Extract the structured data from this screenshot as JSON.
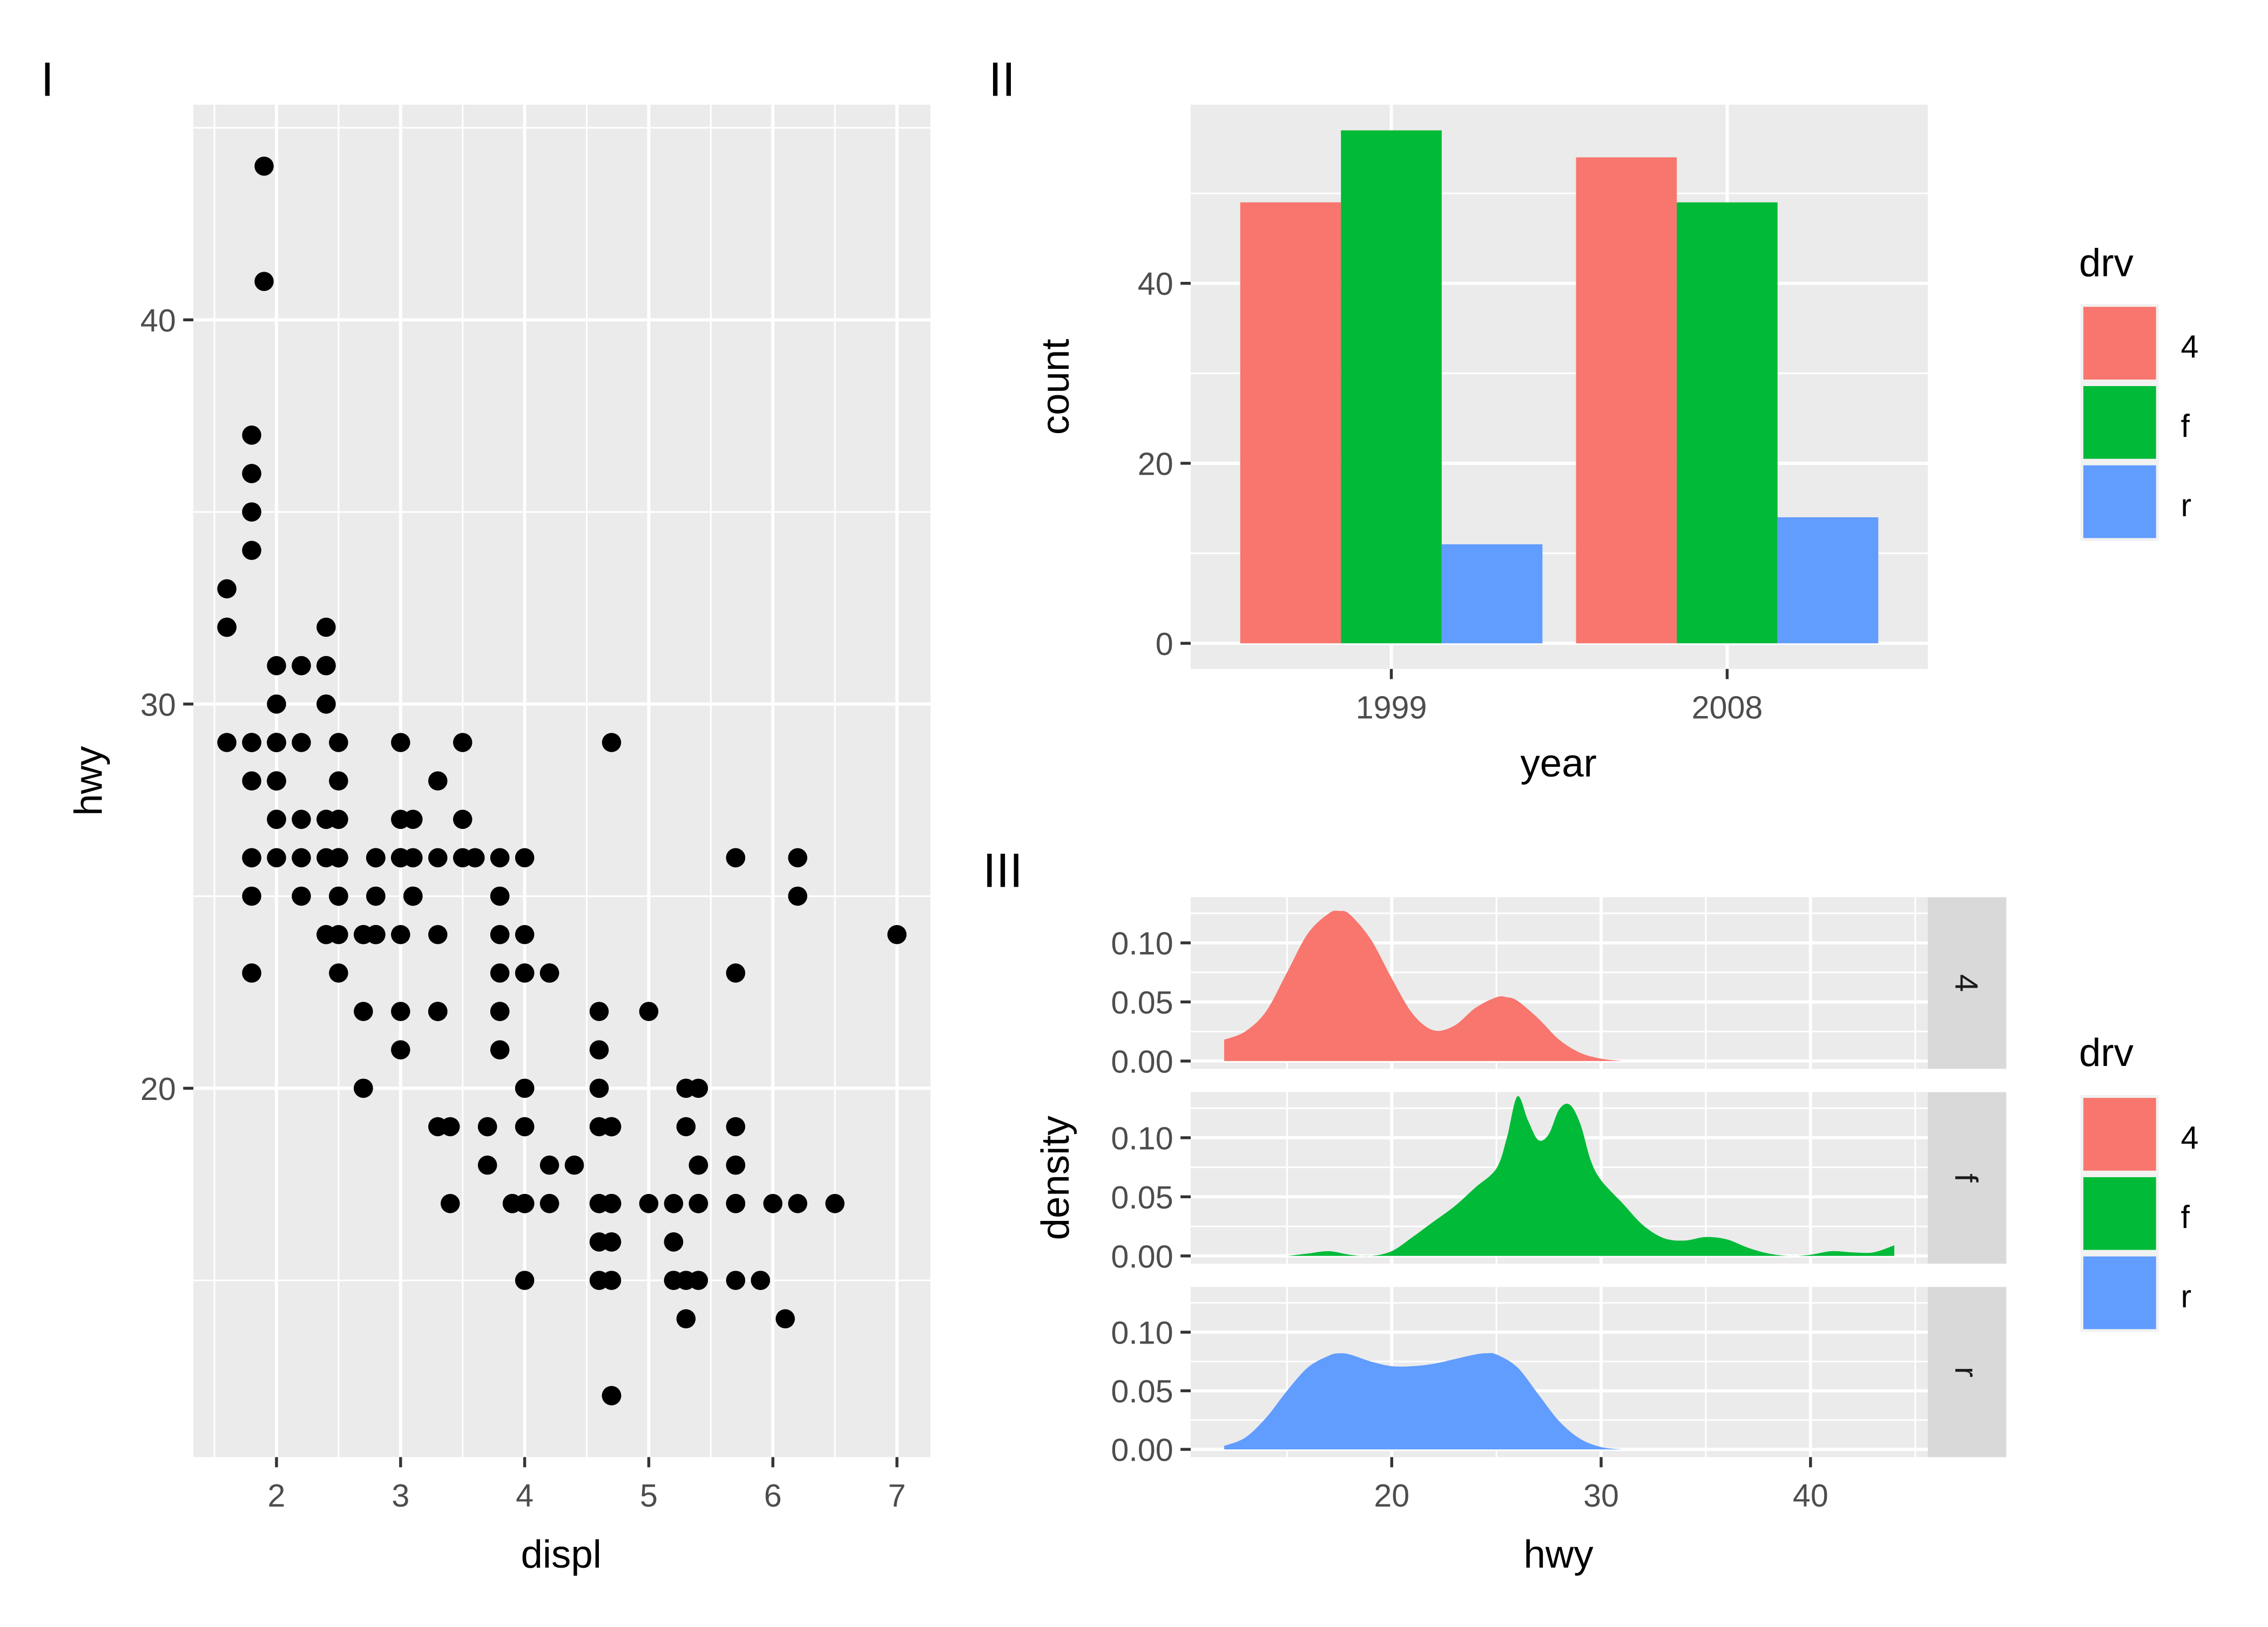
{
  "chart_data": [
    {
      "tag": "I",
      "type": "scatter",
      "title": "",
      "xlabel": "displ",
      "ylabel": "hwy",
      "xlim": [
        1.33,
        7.27
      ],
      "ylim": [
        10.4,
        45.6
      ],
      "xticks": [
        2,
        3,
        4,
        5,
        6,
        7
      ],
      "yticks": [
        20,
        30,
        40
      ],
      "grid": true,
      "point_color": "#000000",
      "points": [
        [
          1.8,
          29
        ],
        [
          1.8,
          29
        ],
        [
          2,
          31
        ],
        [
          2,
          30
        ],
        [
          2.8,
          26
        ],
        [
          2.8,
          26
        ],
        [
          3.1,
          27
        ],
        [
          1.8,
          26
        ],
        [
          1.8,
          25
        ],
        [
          2,
          28
        ],
        [
          2,
          27
        ],
        [
          2.8,
          25
        ],
        [
          2.8,
          25
        ],
        [
          3.1,
          25
        ],
        [
          3.1,
          25
        ],
        [
          2.8,
          24
        ],
        [
          3.1,
          25
        ],
        [
          4.2,
          23
        ],
        [
          5.3,
          20
        ],
        [
          5.3,
          15
        ],
        [
          5.3,
          20
        ],
        [
          5.7,
          17
        ],
        [
          6,
          17
        ],
        [
          5.7,
          26
        ],
        [
          5.7,
          23
        ],
        [
          6.2,
          26
        ],
        [
          6.2,
          25
        ],
        [
          7,
          24
        ],
        [
          5.3,
          19
        ],
        [
          5.3,
          14
        ],
        [
          5.7,
          15
        ],
        [
          6.5,
          17
        ],
        [
          2.4,
          27
        ],
        [
          2.4,
          30
        ],
        [
          3.1,
          26
        ],
        [
          3.5,
          29
        ],
        [
          3.6,
          26
        ],
        [
          2.4,
          24
        ],
        [
          3,
          24
        ],
        [
          3.3,
          22
        ],
        [
          3.3,
          19
        ],
        [
          3.3,
          22
        ],
        [
          3.3,
          22
        ],
        [
          3.3,
          24
        ],
        [
          3.8,
          24
        ],
        [
          3.8,
          22
        ],
        [
          3.8,
          21
        ],
        [
          4,
          23
        ],
        [
          3.7,
          19
        ],
        [
          3.7,
          18
        ],
        [
          3.9,
          17
        ],
        [
          3.9,
          17
        ],
        [
          4.7,
          19
        ],
        [
          4.7,
          19
        ],
        [
          4.7,
          12
        ],
        [
          5.2,
          17
        ],
        [
          5.2,
          15
        ],
        [
          3.9,
          17
        ],
        [
          4.7,
          17
        ],
        [
          4.7,
          12
        ],
        [
          4.7,
          17
        ],
        [
          5.2,
          16
        ],
        [
          5.7,
          18
        ],
        [
          5.9,
          15
        ],
        [
          4.7,
          16
        ],
        [
          4.7,
          12
        ],
        [
          4.7,
          17
        ],
        [
          4.7,
          17
        ],
        [
          4.7,
          16
        ],
        [
          4.7,
          12
        ],
        [
          5.2,
          15
        ],
        [
          5.2,
          16
        ],
        [
          5.7,
          17
        ],
        [
          5.9,
          15
        ],
        [
          4.6,
          17
        ],
        [
          5.4,
          17
        ],
        [
          5.4,
          18
        ],
        [
          4,
          17
        ],
        [
          4,
          19
        ],
        [
          4,
          17
        ],
        [
          4,
          19
        ],
        [
          4.6,
          19
        ],
        [
          5,
          17
        ],
        [
          4.2,
          17
        ],
        [
          4.2,
          17
        ],
        [
          4.6,
          16
        ],
        [
          4.6,
          17
        ],
        [
          4.6,
          17
        ],
        [
          5.4,
          15
        ],
        [
          5.4,
          17
        ],
        [
          3.8,
          26
        ],
        [
          3.8,
          25
        ],
        [
          4,
          26
        ],
        [
          4,
          24
        ],
        [
          4.6,
          21
        ],
        [
          5,
          22
        ],
        [
          4.2,
          23
        ],
        [
          4.2,
          23
        ],
        [
          4.6,
          22
        ],
        [
          4.6,
          20
        ],
        [
          4.6,
          20
        ],
        [
          5.4,
          18
        ],
        [
          5.4,
          20
        ],
        [
          1.6,
          33
        ],
        [
          1.6,
          32
        ],
        [
          1.6,
          32
        ],
        [
          1.6,
          29
        ],
        [
          1.6,
          32
        ],
        [
          1.8,
          34
        ],
        [
          1.8,
          36
        ],
        [
          1.8,
          36
        ],
        [
          2,
          29
        ],
        [
          2.4,
          26
        ],
        [
          2.4,
          27
        ],
        [
          2.4,
          30
        ],
        [
          2.4,
          31
        ],
        [
          2.5,
          26
        ],
        [
          2.5,
          26
        ],
        [
          3.3,
          28
        ],
        [
          2,
          26
        ],
        [
          2,
          29
        ],
        [
          2,
          28
        ],
        [
          2,
          27
        ],
        [
          2.7,
          24
        ],
        [
          2.7,
          24
        ],
        [
          2.7,
          24
        ],
        [
          3,
          22
        ],
        [
          3.7,
          19
        ],
        [
          4,
          20
        ],
        [
          4.7,
          17
        ],
        [
          4.7,
          12
        ],
        [
          4.7,
          19
        ],
        [
          5.7,
          18
        ],
        [
          6.1,
          14
        ],
        [
          4,
          15
        ],
        [
          4.2,
          18
        ],
        [
          4.4,
          18
        ],
        [
          4.6,
          15
        ],
        [
          5.4,
          17
        ],
        [
          5.4,
          17
        ],
        [
          2.5,
          26
        ],
        [
          2.5,
          25
        ],
        [
          2.5,
          27
        ],
        [
          2.5,
          25
        ],
        [
          2.5,
          26
        ],
        [
          2.5,
          26
        ],
        [
          2.5,
          25
        ],
        [
          2.5,
          26
        ],
        [
          2.2,
          25
        ],
        [
          2.2,
          26
        ],
        [
          2.4,
          24
        ],
        [
          3,
          21
        ],
        [
          3.3,
          22
        ],
        [
          1.8,
          23
        ],
        [
          1.8,
          23
        ],
        [
          2,
          28
        ],
        [
          2.8,
          24
        ],
        [
          3.5,
          26
        ],
        [
          2,
          29
        ],
        [
          2.5,
          24
        ],
        [
          3,
          29
        ],
        [
          3.8,
          23
        ],
        [
          3.8,
          24
        ],
        [
          4,
          23
        ],
        [
          4.7,
          19
        ],
        [
          4.7,
          15
        ],
        [
          5.7,
          17
        ],
        [
          6.2,
          17
        ],
        [
          5.7,
          19
        ],
        [
          2.5,
          27
        ],
        [
          3.8,
          25
        ],
        [
          3.8,
          26
        ],
        [
          3.8,
          22
        ],
        [
          4.7,
          17
        ],
        [
          2.2,
          29
        ],
        [
          2.2,
          27
        ],
        [
          2.4,
          31
        ],
        [
          2.4,
          31
        ],
        [
          3,
          26
        ],
        [
          3,
          26
        ],
        [
          3.5,
          27
        ],
        [
          2.2,
          31
        ],
        [
          2.2,
          31
        ],
        [
          2.4,
          31
        ],
        [
          2.4,
          32
        ],
        [
          3,
          27
        ],
        [
          3,
          26
        ],
        [
          3.3,
          26
        ],
        [
          1.8,
          26
        ],
        [
          1.8,
          28
        ],
        [
          1.8,
          35
        ],
        [
          1.8,
          37
        ],
        [
          1.8,
          35
        ],
        [
          4.7,
          29
        ],
        [
          5.7,
          26
        ],
        [
          2.7,
          20
        ],
        [
          2.7,
          20
        ],
        [
          2.7,
          22
        ],
        [
          3.4,
          17
        ],
        [
          3.4,
          19
        ],
        [
          4,
          17
        ],
        [
          4,
          20
        ],
        [
          2,
          29
        ],
        [
          2,
          29
        ],
        [
          2,
          28
        ],
        [
          2,
          29
        ],
        [
          2.8,
          26
        ],
        [
          1.9,
          44
        ],
        [
          2,
          29
        ],
        [
          2,
          29
        ],
        [
          2,
          28
        ],
        [
          2,
          29
        ],
        [
          2.5,
          29
        ],
        [
          2.5,
          23
        ],
        [
          2.8,
          24
        ],
        [
          2.8,
          24
        ],
        [
          1.9,
          41
        ],
        [
          2,
          29
        ],
        [
          2.5,
          26
        ],
        [
          2.5,
          28
        ],
        [
          1.8,
          29
        ],
        [
          1.8,
          29
        ],
        [
          2,
          28
        ],
        [
          2,
          29
        ],
        [
          2.8,
          26
        ],
        [
          2.8,
          26
        ],
        [
          3.6,
          26
        ]
      ]
    },
    {
      "tag": "II",
      "type": "bar",
      "title": "",
      "xlabel": "year",
      "ylabel": "count",
      "categories": [
        "1999",
        "2008"
      ],
      "ylim": [
        -2.85,
        59.85
      ],
      "yticks": [
        0,
        20,
        40
      ],
      "grid": true,
      "series": [
        {
          "name": "4",
          "color": "#F8766D",
          "values": [
            49,
            54
          ]
        },
        {
          "name": "f",
          "color": "#00BA38",
          "values": [
            57,
            49
          ]
        },
        {
          "name": "r",
          "color": "#619CFF",
          "values": [
            11,
            14
          ]
        }
      ],
      "legend": {
        "title": "drv",
        "position": "right",
        "labels": [
          "4",
          "f",
          "r"
        ]
      }
    },
    {
      "tag": "III",
      "type": "area",
      "subtype": "density, faceted by drv (rows)",
      "title": "",
      "xlabel": "hwy",
      "ylabel": "density",
      "xlim": [
        10.4,
        45.6
      ],
      "ylim": [
        -0.0066,
        0.1386
      ],
      "xticks": [
        20,
        30,
        40
      ],
      "yticks": [
        0.0,
        0.05,
        0.1
      ],
      "ytick_labels": [
        "0.00",
        "0.05",
        "0.10"
      ],
      "grid": true,
      "facets": [
        {
          "strip": "4",
          "color": "#F8766D",
          "x": [
            12,
            13,
            14,
            15,
            16,
            17,
            17.5,
            18,
            19,
            20,
            21,
            22,
            23,
            24,
            25,
            25.5,
            26,
            27,
            28,
            29,
            30,
            31
          ],
          "y": [
            0.018,
            0.025,
            0.042,
            0.075,
            0.108,
            0.125,
            0.127,
            0.124,
            0.103,
            0.07,
            0.04,
            0.026,
            0.03,
            0.045,
            0.054,
            0.054,
            0.051,
            0.036,
            0.018,
            0.007,
            0.002,
            0.0
          ]
        },
        {
          "strip": "f",
          "color": "#00BA38",
          "x": [
            15,
            16,
            17,
            18,
            19,
            20,
            21,
            22,
            23,
            24,
            25,
            25.5,
            26,
            26.5,
            27,
            27.5,
            28,
            28.5,
            29,
            29.5,
            30,
            31,
            32,
            33,
            34,
            35,
            36,
            37,
            38,
            39,
            40,
            41,
            42,
            43,
            44
          ],
          "y": [
            0.0,
            0.002,
            0.004,
            0.001,
            0.0,
            0.004,
            0.016,
            0.029,
            0.042,
            0.058,
            0.074,
            0.1,
            0.135,
            0.115,
            0.098,
            0.103,
            0.124,
            0.128,
            0.112,
            0.081,
            0.064,
            0.045,
            0.026,
            0.015,
            0.013,
            0.016,
            0.014,
            0.007,
            0.002,
            0.0,
            0.001,
            0.004,
            0.003,
            0.003,
            0.009
          ]
        },
        {
          "strip": "r",
          "color": "#619CFF",
          "x": [
            12,
            13,
            14,
            15,
            16,
            17,
            17.5,
            18,
            19,
            20,
            21,
            22,
            23,
            24,
            24.5,
            25,
            26,
            27,
            28,
            29,
            30,
            31
          ],
          "y": [
            0.003,
            0.01,
            0.027,
            0.05,
            0.07,
            0.08,
            0.082,
            0.081,
            0.075,
            0.071,
            0.071,
            0.073,
            0.077,
            0.081,
            0.082,
            0.081,
            0.07,
            0.047,
            0.024,
            0.009,
            0.002,
            0.0
          ]
        }
      ],
      "legend": {
        "title": "drv",
        "position": "right",
        "labels": [
          "4",
          "f",
          "r"
        ]
      }
    }
  ],
  "palette": {
    "4": "#F8766D",
    "f": "#00BA38",
    "r": "#619CFF",
    "panel_bg": "#EBEBEB",
    "strip_bg": "#D9D9D9",
    "grid": "#FFFFFF"
  }
}
